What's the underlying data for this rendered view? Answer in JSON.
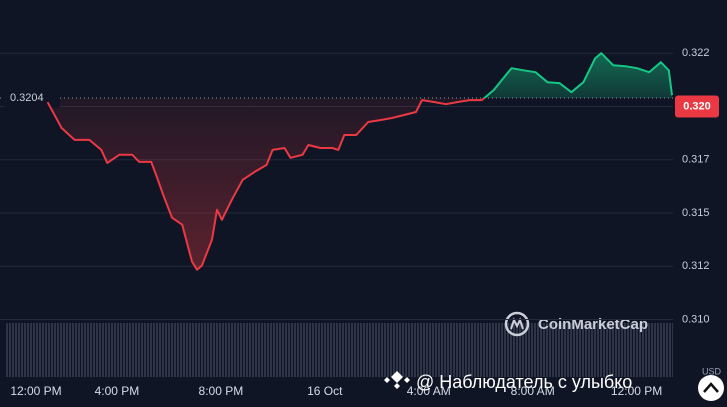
{
  "chart_data": {
    "type": "line",
    "x": [
      1.33,
      1.87,
      2.37,
      2.94,
      3.4,
      3.63,
      4.09,
      4.59,
      4.86,
      5.32,
      5.55,
      5.78,
      6.12,
      6.51,
      6.89,
      7.08,
      7.27,
      7.66,
      7.85,
      8.04,
      8.42,
      8.84,
      9.3,
      9.76,
      9.99,
      10.45,
      10.68,
      11.14,
      11.37,
      11.83,
      12.29,
      12.52,
      12.75,
      13.21,
      13.67,
      14.13,
      14.59,
      15.05,
      15.51,
      15.74,
      16.2,
      16.66,
      17.12,
      17.58,
      18.04,
      18.5,
      18.96,
      19.19,
      19.65,
      20.11,
      20.57,
      21.03,
      21.49,
      21.95,
      22.41,
      22.64,
      23.1,
      23.56,
      24.02,
      24.48,
      24.93,
      25.24,
      25.36
    ],
    "values": [
      0.3202,
      0.31899,
      0.31843,
      0.31843,
      0.31796,
      0.31735,
      0.31773,
      0.31773,
      0.3174,
      0.3174,
      0.31665,
      0.31585,
      0.31478,
      0.31445,
      0.31272,
      0.31234,
      0.31253,
      0.31375,
      0.31515,
      0.31468,
      0.31562,
      0.31656,
      0.31693,
      0.31726,
      0.31796,
      0.31805,
      0.31759,
      0.31773,
      0.31819,
      0.31805,
      0.31805,
      0.31796,
      0.31866,
      0.31866,
      0.31927,
      0.31936,
      0.31946,
      0.3196,
      0.31974,
      0.3203,
      0.32021,
      0.32011,
      0.32021,
      0.3203,
      0.3203,
      0.32077,
      0.32147,
      0.3218,
      0.3217,
      0.32161,
      0.32114,
      0.3211,
      0.32067,
      0.32114,
      0.32227,
      0.3225,
      0.32194,
      0.32189,
      0.3218,
      0.32161,
      0.32208,
      0.3217,
      0.32053
    ],
    "baseline": 0.3204,
    "up_color": "#16c784",
    "down_color": "#ea3943",
    "xlim": [
      -0.5,
      25.4
    ],
    "ylim": [
      0.3073,
      0.325
    ],
    "xticks": [
      {
        "value": 0,
        "label": "12:00 PM"
      },
      {
        "value": 4,
        "label": "4:00 PM"
      },
      {
        "value": 8,
        "label": "8:00 PM"
      },
      {
        "value": 12,
        "label": "16 Oct"
      },
      {
        "value": 16,
        "label": "4:00 AM"
      },
      {
        "value": 20,
        "label": "8:00 AM"
      },
      {
        "value": 24,
        "label": "12:00 PM"
      }
    ],
    "yticks": [
      {
        "value": 0.3225,
        "label": "0.322"
      },
      {
        "value": 0.32,
        "label": "0.320"
      },
      {
        "value": 0.3175,
        "label": "0.317"
      },
      {
        "value": 0.315,
        "label": "0.315"
      },
      {
        "value": 0.3125,
        "label": "0.312"
      },
      {
        "value": 0.31,
        "label": "0.310"
      }
    ],
    "grid": true,
    "currency": "USD",
    "watermark": "CoinMarketCap",
    "overlay": "@ Наблюдатель с улыбко"
  }
}
